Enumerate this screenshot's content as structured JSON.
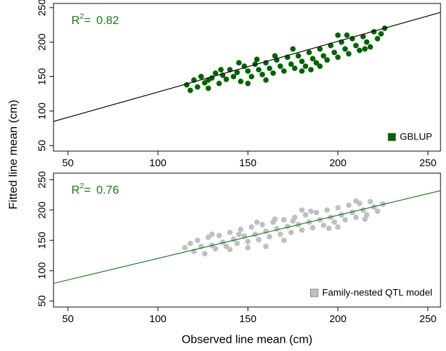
{
  "y_label": "Fitted line mean (cm)",
  "x_label": "Observed line mean (cm)",
  "chart_data": [
    {
      "type": "scatter",
      "legend": "bottom-right",
      "annotation": {
        "prefix": "R",
        "sup": "2",
        "eq": "=",
        "value": 0.82,
        "color": "#1a7a1a"
      },
      "xlim": [
        42,
        257
      ],
      "ylim": [
        42,
        256
      ],
      "xticks": [
        50,
        100,
        150,
        200,
        250
      ],
      "yticks": [
        50,
        100,
        150,
        200,
        250
      ],
      "fit_line": {
        "x": [
          42,
          257
        ],
        "values": [
          85,
          243
        ],
        "color": "#000000"
      },
      "series": [
        {
          "name": "GBLUP",
          "color": "#006400",
          "x": [
            116,
            118,
            120,
            122,
            124,
            126,
            128,
            130,
            132,
            134,
            136,
            138,
            140,
            142,
            144,
            146,
            148,
            150,
            152,
            154,
            156,
            158,
            160,
            162,
            164,
            166,
            168,
            170,
            172,
            174,
            176,
            178,
            180,
            182,
            184,
            186,
            188,
            190,
            192,
            194,
            196,
            198,
            200,
            202,
            204,
            206,
            208,
            210,
            212,
            214,
            216,
            218,
            220,
            222,
            224,
            226,
            145,
            160,
            175,
            190,
            205,
            135,
            150,
            165,
            185,
            200,
            215,
            128,
            155,
            180
          ],
          "values": [
            138,
            130,
            145,
            135,
            150,
            141,
            133,
            148,
            155,
            140,
            152,
            146,
            160,
            150,
            156,
            143,
            165,
            158,
            150,
            168,
            160,
            153,
            170,
            162,
            155,
            174,
            165,
            158,
            178,
            168,
            162,
            180,
            172,
            165,
            185,
            176,
            170,
            190,
            180,
            174,
            195,
            185,
            178,
            200,
            190,
            183,
            205,
            195,
            188,
            208,
            200,
            193,
            215,
            205,
            212,
            220,
            170,
            145,
            190,
            165,
            210,
            160,
            140,
            180,
            160,
            210,
            190,
            145,
            175,
            158
          ]
        }
      ]
    },
    {
      "type": "scatter",
      "legend": "bottom-right",
      "annotation": {
        "prefix": "R",
        "sup": "2",
        "eq": "=",
        "value": 0.76,
        "color": "#1a7a1a"
      },
      "xlim": [
        42,
        257
      ],
      "ylim": [
        40,
        261
      ],
      "xticks": [
        50,
        100,
        150,
        200,
        250
      ],
      "yticks": [
        50,
        100,
        150,
        200,
        250
      ],
      "fit_line": {
        "x": [
          42,
          257
        ],
        "values": [
          79,
          232
        ],
        "color": "#1a7a1a"
      },
      "series": [
        {
          "name": "Family-nested QTL model",
          "color": "#c0c0c0",
          "x": [
            115,
            118,
            120,
            122,
            124,
            126,
            128,
            130,
            132,
            134,
            136,
            138,
            140,
            142,
            144,
            146,
            148,
            150,
            152,
            154,
            156,
            158,
            160,
            162,
            164,
            166,
            168,
            170,
            172,
            174,
            176,
            178,
            180,
            182,
            184,
            186,
            188,
            190,
            192,
            194,
            196,
            198,
            200,
            202,
            204,
            206,
            208,
            210,
            212,
            214,
            216,
            218,
            220,
            222,
            225,
            210,
            140,
            155,
            170,
            185,
            195,
            130,
            150,
            165,
            180,
            200,
            215,
            145,
            160,
            175
          ],
          "values": [
            138,
            145,
            132,
            150,
            140,
            128,
            155,
            142,
            136,
            158,
            147,
            140,
            163,
            152,
            145,
            168,
            157,
            148,
            172,
            160,
            151,
            176,
            165,
            156,
            180,
            169,
            160,
            184,
            173,
            163,
            188,
            176,
            167,
            192,
            180,
            171,
            196,
            184,
            175,
            200,
            188,
            180,
            204,
            192,
            184,
            208,
            196,
            188,
            211,
            200,
            192,
            214,
            205,
            198,
            210,
            215,
            135,
            180,
            150,
            198,
            170,
            160,
            138,
            185,
            200,
            172,
            185,
            160,
            140,
            182
          ]
        }
      ]
    }
  ]
}
